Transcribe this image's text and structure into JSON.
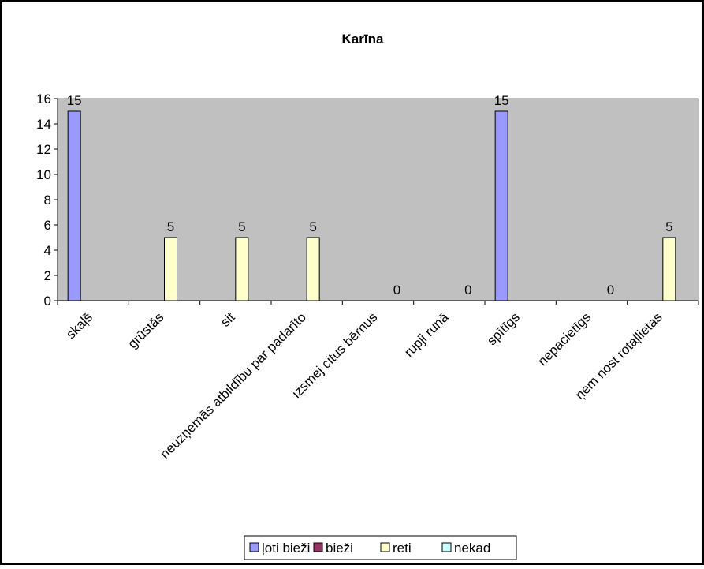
{
  "chart_data": {
    "type": "bar",
    "title": "Karīna",
    "categories": [
      "skaļš",
      "grūstās",
      "sit",
      "neuzņemās atbildību par padarīto",
      "izsmej citus bērnus",
      "rupji runā",
      "spītīgs",
      "nepacietīgs",
      "ņem nost rotaļlietas"
    ],
    "series": [
      {
        "name": "ļoti bieži",
        "color": "#9999ff",
        "values": [
          15,
          null,
          null,
          null,
          null,
          null,
          15,
          null,
          null
        ]
      },
      {
        "name": "bieži",
        "color": "#993366",
        "values": [
          null,
          null,
          null,
          null,
          null,
          null,
          null,
          null,
          null
        ]
      },
      {
        "name": "reti",
        "color": "#ffffcc",
        "values": [
          null,
          5,
          5,
          5,
          null,
          null,
          null,
          null,
          5
        ]
      },
      {
        "name": "nekad",
        "color": "#ccffff",
        "values": [
          null,
          null,
          null,
          null,
          0,
          0,
          null,
          0,
          null
        ]
      }
    ],
    "ylim": [
      0,
      16
    ],
    "yticks": [
      "0",
      "2",
      "4",
      "6",
      "8",
      "10",
      "12",
      "14",
      "16"
    ],
    "plot_background": "#c0c0c0",
    "legend_position": "bottom",
    "grid": false
  }
}
